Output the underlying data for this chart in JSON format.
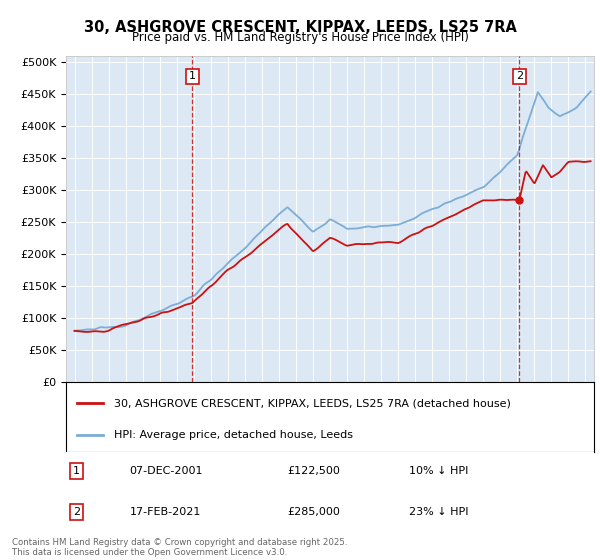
{
  "title": "30, ASHGROVE CRESCENT, KIPPAX, LEEDS, LS25 7RA",
  "subtitle": "Price paid vs. HM Land Registry's House Price Index (HPI)",
  "ylabel_ticks": [
    "£0",
    "£50K",
    "£100K",
    "£150K",
    "£200K",
    "£250K",
    "£300K",
    "£350K",
    "£400K",
    "£450K",
    "£500K"
  ],
  "ytick_values": [
    0,
    50000,
    100000,
    150000,
    200000,
    250000,
    300000,
    350000,
    400000,
    450000,
    500000
  ],
  "ylim": [
    0,
    510000
  ],
  "xlim_start": 1994.5,
  "xlim_end": 2025.5,
  "hpi_color": "#7dadd4",
  "price_color": "#cc1111",
  "marker1_x": 2001.92,
  "marker2_x": 2021.12,
  "legend_line1": "30, ASHGROVE CRESCENT, KIPPAX, LEEDS, LS25 7RA (detached house)",
  "legend_line2": "HPI: Average price, detached house, Leeds",
  "annotation1_num": "1",
  "annotation1_date": "07-DEC-2001",
  "annotation1_price": "£122,500",
  "annotation1_hpi": "10% ↓ HPI",
  "annotation2_num": "2",
  "annotation2_date": "17-FEB-2021",
  "annotation2_price": "£285,000",
  "annotation2_hpi": "23% ↓ HPI",
  "footnote": "Contains HM Land Registry data © Crown copyright and database right 2025.\nThis data is licensed under the Open Government Licence v3.0.",
  "plot_bg_color": "#dce9f5",
  "fig_bg_color": "#ffffff"
}
